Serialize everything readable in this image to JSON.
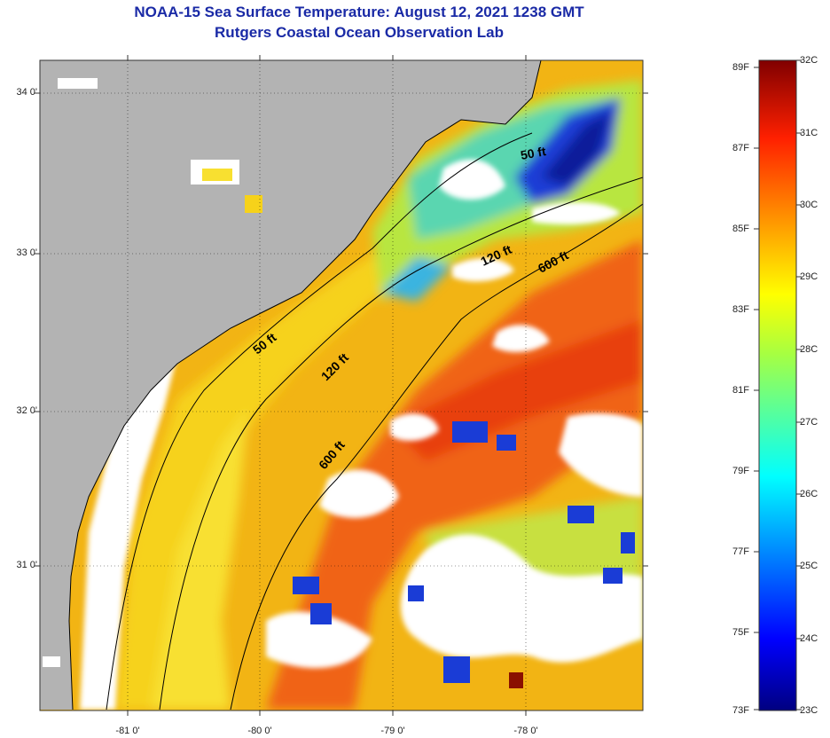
{
  "title": {
    "line1": "NOAA-15 Sea Surface Temperature:  August 12, 2021 1238 GMT",
    "line2": "Rutgers Coastal Ocean Observation Lab"
  },
  "map": {
    "lat_ticks": [
      "34 0'",
      "33 0'",
      "32 0'",
      "31 0'"
    ],
    "lon_ticks": [
      "-81 0'",
      "-80 0'",
      "-79 0'",
      "-78 0'"
    ],
    "contour_labels": [
      "50 ft",
      "120 ft",
      "600 ft",
      "50 ft",
      "120 ft",
      "600 ft"
    ],
    "colors": {
      "land": "#b3b3b3",
      "cloud": "#ffffff"
    }
  },
  "colorbar": {
    "f_labels": [
      "89F",
      "87F",
      "85F",
      "83F",
      "81F",
      "79F",
      "77F",
      "75F",
      "73F"
    ],
    "c_labels": [
      "32C",
      "31C",
      "30C",
      "29C",
      "28C",
      "27C",
      "26C",
      "25C",
      "24C",
      "23C"
    ]
  }
}
